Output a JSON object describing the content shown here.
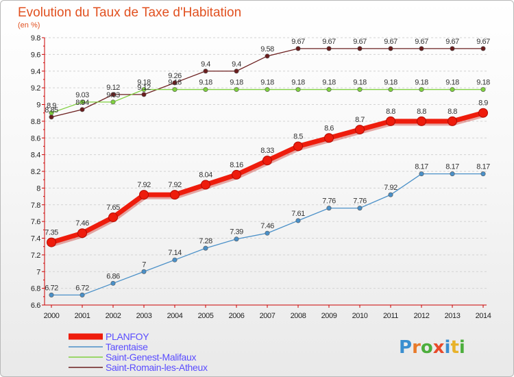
{
  "chart_data": {
    "type": "line",
    "title": "Evolution du Taux de Taxe d'Habitation",
    "subtitle": "(en %)",
    "x": [
      2000,
      2001,
      2002,
      2003,
      2004,
      2005,
      2006,
      2007,
      2008,
      2009,
      2010,
      2011,
      2012,
      2013,
      2014
    ],
    "ylim": [
      6.6,
      9.8
    ],
    "yticks": [
      6.6,
      6.8,
      7,
      7.2,
      7.4,
      7.6,
      7.8,
      8,
      8.2,
      8.4,
      8.6,
      8.8,
      9,
      9.2,
      9.4,
      9.6,
      9.8
    ],
    "grid": "horizontal dashed",
    "legend_position": "bottom-left",
    "series": [
      {
        "name": "Saint-Romain-les-Atheux",
        "color": "#6b1e1e",
        "values": [
          8.85,
          8.94,
          9.12,
          9.12,
          9.26,
          9.4,
          9.4,
          9.58,
          9.67,
          9.67,
          9.67,
          9.67,
          9.67,
          9.67,
          9.67
        ]
      },
      {
        "name": "Saint-Genest-Malifaux",
        "color": "#80d040",
        "values": [
          8.9,
          9.03,
          9.03,
          9.18,
          9.18,
          9.18,
          9.18,
          9.18,
          9.18,
          9.18,
          9.18,
          9.18,
          9.18,
          9.18,
          9.18
        ]
      },
      {
        "name": "Tarentaise",
        "color": "#4a90c8",
        "values": [
          6.72,
          6.72,
          6.86,
          7,
          7.14,
          7.28,
          7.39,
          7.46,
          7.61,
          7.76,
          7.76,
          7.92,
          8.17,
          8.17,
          8.17
        ]
      },
      {
        "name": "PLANFOY",
        "color": "#ee1c0c",
        "highlight": true,
        "values": [
          7.35,
          7.46,
          7.65,
          7.92,
          7.92,
          8.04,
          8.16,
          8.33,
          8.5,
          8.6,
          8.7,
          8.8,
          8.8,
          8.8,
          8.9
        ]
      }
    ],
    "legend": [
      {
        "name": "PLANFOY",
        "color": "#ee1c0c",
        "text_color": "#5a4cff"
      },
      {
        "name": "Tarentaise",
        "color": "#4a90c8",
        "text_color": "#5a4cff"
      },
      {
        "name": "Saint-Genest-Malifaux",
        "color": "#80d040",
        "text_color": "#5a4cff"
      },
      {
        "name": "Saint-Romain-les-Atheux",
        "color": "#6b1e1e",
        "text_color": "#5a4cff"
      }
    ]
  },
  "logo": {
    "text": "Proxiti",
    "letter_colors": [
      "#3a8fd0",
      "#e87a2a",
      "#4cae3c",
      "#e84a2a",
      "#3a8fd0",
      "#e8b22a",
      "#4cae3c"
    ]
  }
}
